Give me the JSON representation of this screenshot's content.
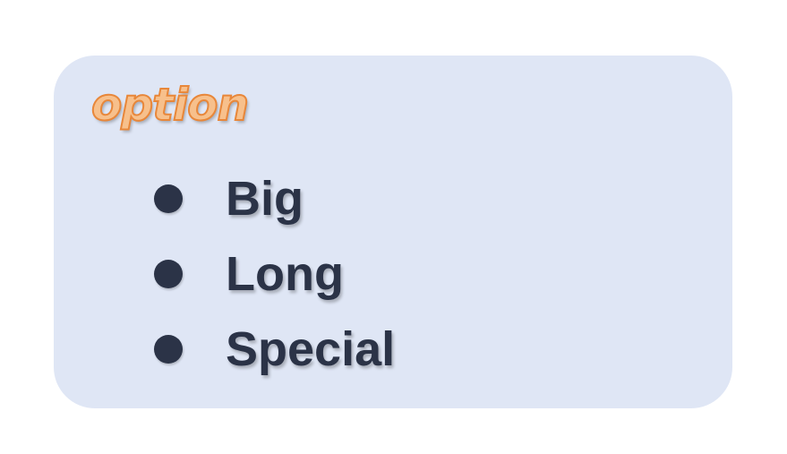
{
  "card": {
    "title": "option",
    "items": [
      {
        "label": "Big"
      },
      {
        "label": "Long"
      },
      {
        "label": "Special"
      }
    ]
  },
  "colors": {
    "card_background": "#dfe6f5",
    "title_fill": "#f7c08c",
    "title_outline": "#e8873a",
    "text": "#2b3347"
  }
}
